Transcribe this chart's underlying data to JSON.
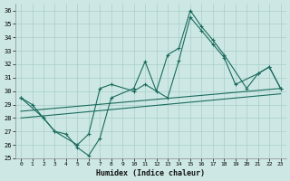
{
  "xlabel": "Humidex (Indice chaleur)",
  "xlim": [
    -0.5,
    23.5
  ],
  "ylim": [
    25,
    36.5
  ],
  "yticks": [
    25,
    26,
    27,
    28,
    29,
    30,
    31,
    32,
    33,
    34,
    35,
    36
  ],
  "xticks": [
    0,
    1,
    2,
    3,
    4,
    5,
    6,
    7,
    8,
    9,
    10,
    11,
    12,
    13,
    14,
    15,
    16,
    17,
    18,
    19,
    20,
    21,
    22,
    23
  ],
  "background_color": "#cde8e4",
  "grid_color": "#a8cdc8",
  "line_color": "#1a6b5e",
  "line1_x": [
    0,
    1,
    2,
    3,
    4,
    5,
    6,
    7,
    8,
    10,
    11,
    12,
    13,
    14,
    15,
    16,
    17,
    18,
    20,
    21,
    22,
    23
  ],
  "line1_y": [
    29.5,
    29.0,
    28.0,
    27.0,
    26.8,
    25.8,
    25.2,
    26.5,
    29.5,
    30.2,
    32.2,
    30.0,
    32.7,
    33.2,
    36.0,
    34.8,
    33.8,
    32.7,
    30.2,
    31.3,
    31.8,
    30.2
  ],
  "line2_x": [
    0,
    2,
    3,
    5,
    6,
    7,
    8,
    10,
    11,
    13,
    14,
    15,
    16,
    17,
    18,
    19,
    21,
    22,
    23
  ],
  "line2_y": [
    29.5,
    28.0,
    27.0,
    26.0,
    26.8,
    30.2,
    30.5,
    30.0,
    30.5,
    29.5,
    32.3,
    35.5,
    34.5,
    33.5,
    32.5,
    30.5,
    31.3,
    31.8,
    30.2
  ],
  "line3_x": [
    0,
    23
  ],
  "line3_y": [
    28.5,
    30.2
  ],
  "line4_x": [
    0,
    23
  ],
  "line4_y": [
    28.0,
    29.8
  ]
}
